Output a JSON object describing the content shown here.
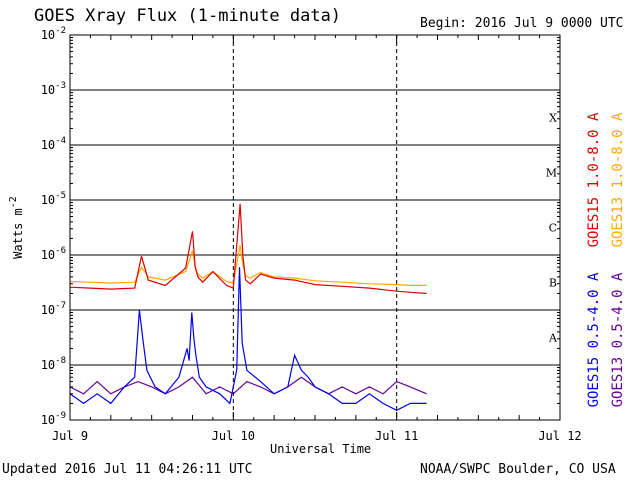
{
  "header": {
    "title": "GOES Xray Flux (1-minute data)",
    "begin": "Begin:  2016 Jul 9 0000 UTC"
  },
  "footer": {
    "updated": "Updated 2016 Jul 11 04:26:11 UTC",
    "credit": "NOAA/SWPC Boulder, CO USA"
  },
  "chart_data": {
    "type": "line",
    "title": "GOES Xray Flux (1-minute data)",
    "xlabel": "Universal Time",
    "ylabel": "Watts m",
    "ylabel_exponent": "-2",
    "yscale": "log",
    "ylim": [
      1e-09,
      0.01
    ],
    "xlim": [
      0,
      72
    ],
    "x_units": "hours since 2016 Jul 9 0000 UTC",
    "x_ticks": [
      {
        "x": 0,
        "label": "Jul 9"
      },
      {
        "x": 24,
        "label": "Jul 10"
      },
      {
        "x": 48,
        "label": "Jul 11"
      },
      {
        "x": 72,
        "label": "Jul 12"
      }
    ],
    "y_ticks": [
      {
        "value": 1e-09,
        "base": "10",
        "exp": "-9"
      },
      {
        "value": 1e-08,
        "base": "10",
        "exp": "-8"
      },
      {
        "value": 1e-07,
        "base": "10",
        "exp": "-7"
      },
      {
        "value": 1e-06,
        "base": "10",
        "exp": "-6"
      },
      {
        "value": 1e-05,
        "base": "10",
        "exp": "-5"
      },
      {
        "value": 0.0001,
        "base": "10",
        "exp": "-4"
      },
      {
        "value": 0.001,
        "base": "10",
        "exp": "-3"
      },
      {
        "value": 0.01,
        "base": "10",
        "exp": "-2"
      }
    ],
    "flare_classes": [
      {
        "label": "A",
        "value": 3.16e-08
      },
      {
        "label": "B",
        "value": 3.16e-07
      },
      {
        "label": "C",
        "value": 3.16e-06
      },
      {
        "label": "M",
        "value": 3.16e-05
      },
      {
        "label": "X",
        "value": 0.000316
      }
    ],
    "grid": true,
    "series": [
      {
        "name": "GOES15 1.0-8.0 A",
        "color": "#dd0000",
        "x": [
          0,
          3,
          6,
          9.5,
          10.5,
          11.5,
          14,
          17,
          18,
          18.4,
          18.8,
          19.5,
          21,
          23,
          24,
          25,
          25.4,
          25.8,
          26.5,
          28,
          30,
          33,
          36,
          40,
          44,
          48,
          50,
          52.4
        ],
        "y": [
          2.6e-07,
          2.5e-07,
          2.4e-07,
          2.5e-07,
          9.5e-07,
          3.5e-07,
          2.8e-07,
          5.8e-07,
          2.7e-06,
          6e-07,
          4e-07,
          3.2e-07,
          5e-07,
          2.8e-07,
          2.5e-07,
          8.5e-06,
          9.5e-07,
          3.5e-07,
          3e-07,
          4.5e-07,
          3.8e-07,
          3.5e-07,
          2.9e-07,
          2.7e-07,
          2.5e-07,
          2.2e-07,
          2.1e-07,
          2e-07
        ]
      },
      {
        "name": "GOES13 1.0-8.0 A",
        "color": "#ffaa00",
        "x": [
          0,
          3,
          6,
          9.5,
          10.5,
          11.5,
          14,
          17,
          18,
          18.4,
          18.8,
          19.5,
          21,
          23,
          24,
          25,
          25.4,
          25.8,
          26.5,
          28,
          30,
          33,
          36,
          40,
          44,
          48,
          50,
          52.4
        ],
        "y": [
          3.3e-07,
          3.2e-07,
          3.1e-07,
          3.2e-07,
          6e-07,
          4e-07,
          3.5e-07,
          5e-07,
          1.2e-06,
          6e-07,
          4.5e-07,
          3.8e-07,
          5e-07,
          3.3e-07,
          3.1e-07,
          1.5e-06,
          6.5e-07,
          4.2e-07,
          3.8e-07,
          4.8e-07,
          4e-07,
          3.8e-07,
          3.4e-07,
          3.2e-07,
          3e-07,
          2.9e-07,
          2.8e-07,
          2.8e-07
        ]
      },
      {
        "name": "GOES15 0.5-4.0 A",
        "color": "#0000ee",
        "x": [
          0,
          2,
          4,
          6,
          8,
          9.5,
          10.2,
          10.7,
          11.3,
          12.5,
          14,
          16,
          17.2,
          17.5,
          17.9,
          18.2,
          18.5,
          19,
          20,
          22,
          23.5,
          24.5,
          24.9,
          25.3,
          26,
          28,
          30,
          32,
          33,
          34,
          35,
          36,
          38,
          40,
          42,
          44,
          46,
          48,
          50,
          52.4
        ],
        "y": [
          3e-09,
          2e-09,
          3e-09,
          2e-09,
          4e-09,
          6e-09,
          1e-07,
          3e-08,
          8e-09,
          4e-09,
          3e-09,
          6e-09,
          2e-08,
          1.2e-08,
          9e-08,
          3e-08,
          1.5e-08,
          6e-09,
          4e-09,
          3e-09,
          2e-09,
          8e-09,
          6e-07,
          2.5e-08,
          8e-09,
          5e-09,
          3e-09,
          4e-09,
          1.5e-08,
          8e-09,
          6e-09,
          4e-09,
          3e-09,
          2e-09,
          2e-09,
          3e-09,
          2e-09,
          1.5e-09,
          2e-09,
          2e-09
        ]
      },
      {
        "name": "GOES13 0.5-4.0 A",
        "color": "#660099",
        "x": [
          0,
          2,
          4,
          6,
          8,
          10,
          12,
          14,
          16,
          18,
          20,
          22,
          24,
          26,
          28,
          30,
          32,
          34,
          36,
          38,
          40,
          42,
          44,
          46,
          48,
          50,
          52.4
        ],
        "y": [
          4e-09,
          3e-09,
          5e-09,
          3e-09,
          4e-09,
          5e-09,
          4e-09,
          3e-09,
          4e-09,
          6e-09,
          3e-09,
          4e-09,
          3e-09,
          5e-09,
          4e-09,
          3e-09,
          4e-09,
          6e-09,
          4e-09,
          3e-09,
          4e-09,
          3e-09,
          4e-09,
          3e-09,
          5e-09,
          4e-09,
          3e-09
        ]
      }
    ]
  }
}
